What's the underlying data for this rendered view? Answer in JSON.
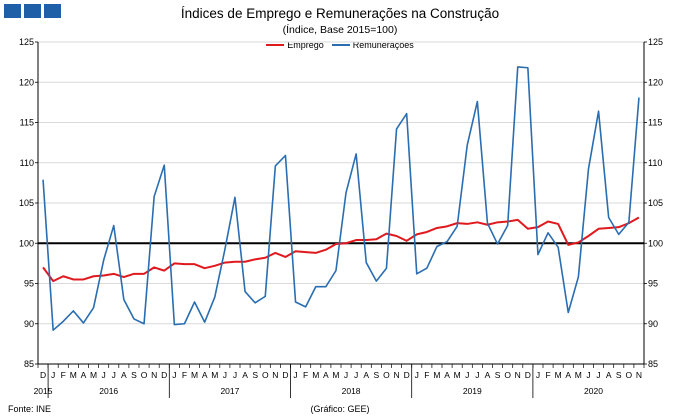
{
  "chart_data": {
    "type": "line",
    "title": "Índices de Emprego  e Remunerações na Construção",
    "subtitle": "(Índice, Base 2015=100)",
    "ylim": [
      85,
      125
    ],
    "yticks": [
      85,
      90,
      95,
      100,
      105,
      110,
      115,
      120,
      125
    ],
    "reference_line": 100,
    "month_labels": [
      "D",
      "J",
      "F",
      "M",
      "A",
      "M",
      "J",
      "J",
      "A",
      "S",
      "O",
      "N",
      "D",
      "J",
      "F",
      "M",
      "A",
      "M",
      "J",
      "J",
      "A",
      "S",
      "O",
      "N",
      "D",
      "J",
      "F",
      "M",
      "A",
      "M",
      "J",
      "J",
      "A",
      "S",
      "O",
      "N",
      "D",
      "J",
      "F",
      "M",
      "A",
      "M",
      "J",
      "J",
      "A",
      "S",
      "O",
      "N",
      "D",
      "J",
      "F",
      "M",
      "A",
      "M",
      "J",
      "J",
      "A",
      "S",
      "O",
      "N"
    ],
    "year_labels": [
      {
        "label": "2015",
        "month_index": 0
      },
      {
        "label": "2016",
        "month_index": 6.5
      },
      {
        "label": "2017",
        "month_index": 18.5
      },
      {
        "label": "2018",
        "month_index": 30.5
      },
      {
        "label": "2019",
        "month_index": 42.5
      },
      {
        "label": "2020",
        "month_index": 54.5
      }
    ],
    "legend_position": "top-center",
    "series": [
      {
        "name": "Emprego",
        "color": "#e0191e",
        "values": [
          97.0,
          95.3,
          95.9,
          95.5,
          95.5,
          95.9,
          96.0,
          96.2,
          95.8,
          96.2,
          96.2,
          97.0,
          96.6,
          97.5,
          97.4,
          97.4,
          96.9,
          97.2,
          97.6,
          97.7,
          97.7,
          98.0,
          98.2,
          98.8,
          98.3,
          99.0,
          98.9,
          98.8,
          99.2,
          99.9,
          100.0,
          100.4,
          100.4,
          100.5,
          101.2,
          100.9,
          100.3,
          101.1,
          101.4,
          101.9,
          102.1,
          102.5,
          102.4,
          102.6,
          102.3,
          102.6,
          102.7,
          102.9,
          101.8,
          102.0,
          102.7,
          102.4,
          99.8,
          100.1,
          100.9,
          101.8,
          101.9,
          102.0,
          102.5,
          103.2
        ]
      },
      {
        "name": "Remunerações",
        "color": "#2a6db0",
        "values": [
          107.9,
          89.2,
          90.3,
          91.6,
          90.1,
          92.0,
          97.9,
          102.2,
          93.0,
          90.6,
          90.0,
          105.8,
          109.7,
          89.9,
          90.0,
          92.7,
          90.2,
          93.3,
          99.2,
          105.7,
          94.0,
          92.6,
          93.4,
          109.6,
          110.9,
          92.7,
          92.1,
          94.6,
          94.6,
          96.6,
          106.3,
          111.1,
          97.6,
          95.3,
          96.9,
          114.2,
          116.1,
          96.2,
          96.9,
          99.6,
          100.2,
          102.1,
          112.2,
          117.6,
          102.5,
          99.9,
          102.2,
          121.9,
          121.8,
          98.6,
          101.3,
          99.5,
          91.4,
          95.8,
          109.2,
          116.4,
          103.2,
          101.1,
          102.6,
          118.1
        ]
      }
    ],
    "source": "Fonte: INE",
    "credit": "(Gráfico: GEE)"
  }
}
